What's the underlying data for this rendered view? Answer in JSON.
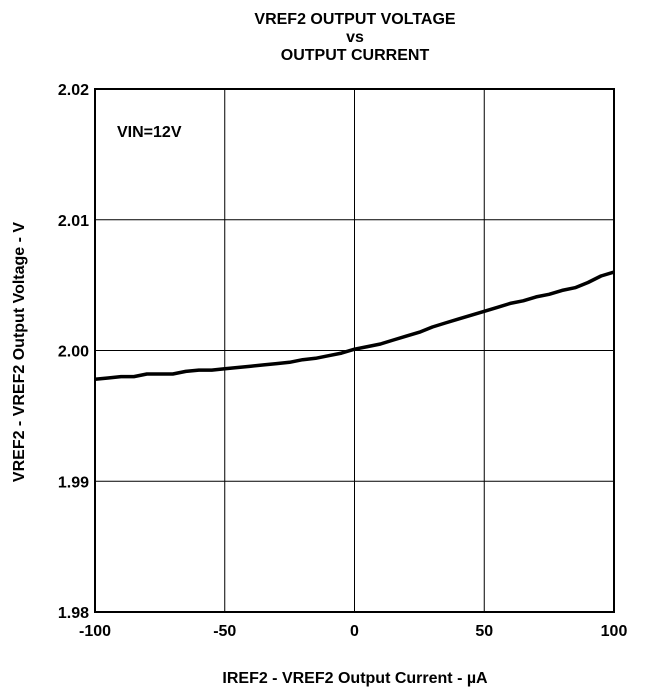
{
  "chart_data": {
    "type": "line",
    "title": [
      "VREF2 OUTPUT VOLTAGE",
      "vs",
      "OUTPUT CURRENT"
    ],
    "xlabel": "IREF2 - VREF2 Output Current  - µA",
    "ylabel": "VREF2 - VREF2 Output Voltage - V",
    "xlim": [
      -100,
      100
    ],
    "ylim": [
      1.98,
      2.02
    ],
    "x_ticks": [
      -100,
      -50,
      0,
      50,
      100
    ],
    "y_ticks": [
      1.98,
      1.99,
      2.0,
      2.01,
      2.02
    ],
    "x_tick_labels": [
      "-100",
      "-50",
      "0",
      "50",
      "100"
    ],
    "y_tick_labels": [
      "1.98",
      "1.99",
      "2.00",
      "2.01",
      "2.02"
    ],
    "grid": true,
    "annotation": "VIN=12V",
    "series": [
      {
        "x": [
          -100,
          -95,
          -90,
          -85,
          -80,
          -75,
          -70,
          -65,
          -60,
          -55,
          -50,
          -45,
          -40,
          -35,
          -30,
          -25,
          -20,
          -15,
          -10,
          -5,
          0,
          5,
          10,
          15,
          20,
          25,
          30,
          35,
          40,
          45,
          50,
          55,
          60,
          65,
          70,
          75,
          80,
          85,
          90,
          95,
          100
        ],
        "y": [
          1.9978,
          1.9979,
          1.998,
          1.998,
          1.9982,
          1.9982,
          1.9982,
          1.9984,
          1.9985,
          1.9985,
          1.9986,
          1.9987,
          1.9988,
          1.9989,
          1.999,
          1.9991,
          1.9993,
          1.9994,
          1.9996,
          1.9998,
          2.0001,
          2.0003,
          2.0005,
          2.0008,
          2.0011,
          2.0014,
          2.0018,
          2.0021,
          2.0024,
          2.0027,
          2.003,
          2.0033,
          2.0036,
          2.0038,
          2.0041,
          2.0043,
          2.0046,
          2.0048,
          2.0052,
          2.0057,
          2.006
        ]
      }
    ]
  }
}
